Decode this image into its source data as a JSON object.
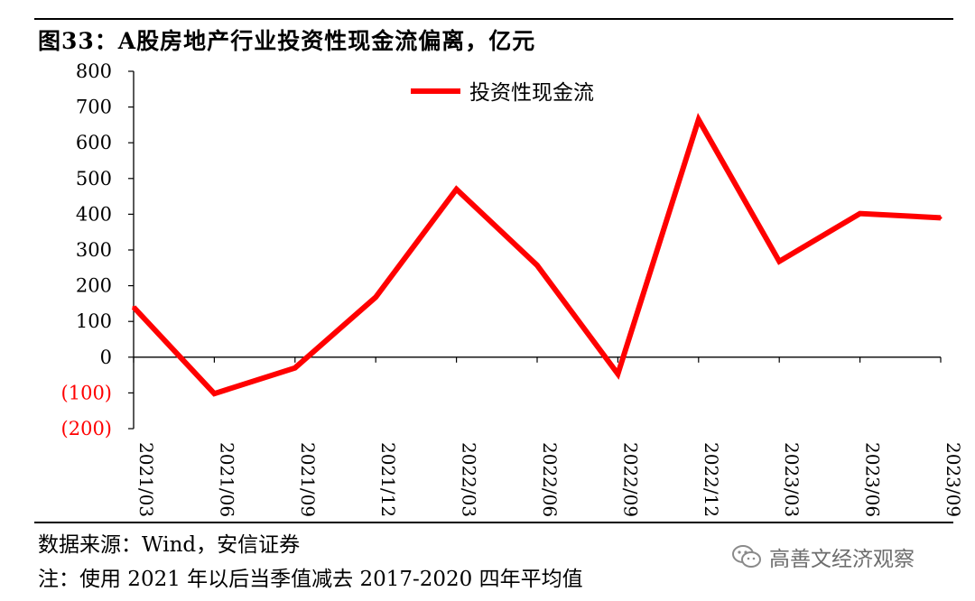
{
  "title": "图33：A股房地产行业投资性现金流偏离，亿元",
  "source": "数据来源：Wind，安信证券",
  "note": "注：使用 2021 年以后当季值减去 2017-2020 四年平均值",
  "watermark": {
    "text": "高善文经济观察",
    "icon": "wechat-icon"
  },
  "chart_data": {
    "type": "line",
    "title": "图33：A股房地产行业投资性现金流偏离，亿元",
    "x": [
      "2021/03",
      "2021/06",
      "2021/09",
      "2021/12",
      "2022/03",
      "2022/06",
      "2022/09",
      "2022/12",
      "2023/03",
      "2023/06",
      "2023/09"
    ],
    "series": [
      {
        "name": "投资性现金流",
        "values": [
          140,
          -102,
          -30,
          168,
          470,
          257,
          -47,
          665,
          268,
          402,
          390
        ],
        "color": "#ff0000"
      }
    ],
    "ylim": [
      -200,
      800
    ],
    "yticks": [
      800,
      700,
      600,
      500,
      400,
      300,
      200,
      100,
      0,
      -100,
      -200
    ],
    "ytick_labels": [
      "800",
      "700",
      "600",
      "500",
      "400",
      "300",
      "200",
      "100",
      "0",
      "(100)",
      "(200)"
    ],
    "negative_label_color": "#ff0000",
    "legend": "top-center",
    "grid": false
  }
}
